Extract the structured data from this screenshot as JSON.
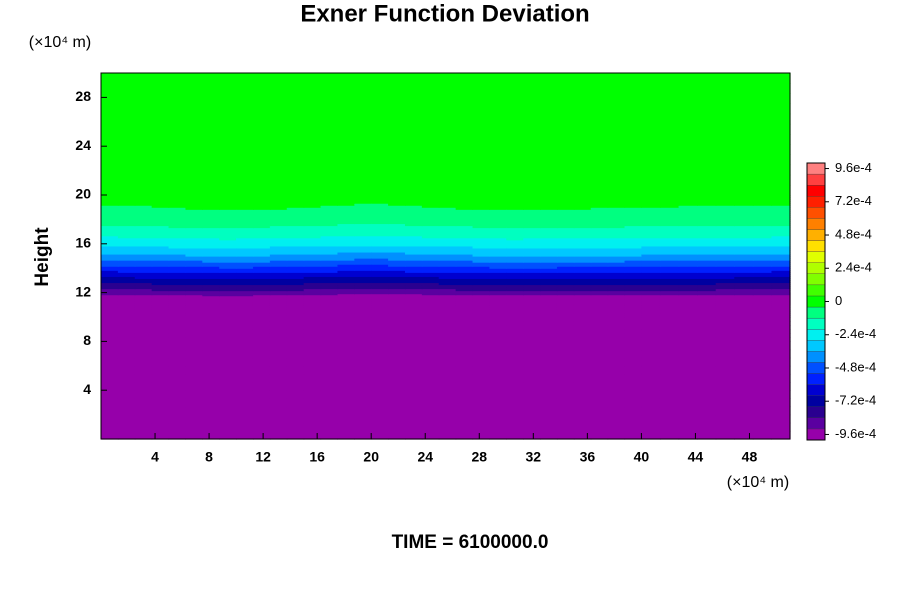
{
  "chart_data": {
    "type": "contour",
    "title": "Exner Function Deviation",
    "y_label": "Height",
    "x_unit_label": "(×10⁴ m)",
    "y_unit_label": "(×10⁴ m)",
    "time_label": "TIME = 6100000.0",
    "xlim": [
      0,
      51
    ],
    "ylim": [
      0,
      30
    ],
    "xticks": [
      4,
      8,
      12,
      16,
      20,
      24,
      28,
      32,
      36,
      40,
      44,
      48
    ],
    "yticks": [
      4,
      8,
      12,
      16,
      20,
      24,
      28
    ],
    "x": [
      0,
      10,
      20,
      30,
      40,
      51
    ],
    "y": [
      0,
      4,
      8,
      10,
      11,
      11.5,
      12,
      13,
      14,
      15,
      16,
      17,
      18,
      19,
      20,
      25,
      30
    ],
    "z": [
      [
        -0.0011,
        -0.0011,
        -0.0011,
        -0.0011,
        -0.0011,
        -0.0011
      ],
      [
        -0.0011,
        -0.0011,
        -0.0011,
        -0.0011,
        -0.0011,
        -0.0011
      ],
      [
        -0.0011,
        -0.0011,
        -0.0011,
        -0.0011,
        -0.0011,
        -0.0011
      ],
      [
        -0.0011,
        -0.0011,
        -0.0011,
        -0.0011,
        -0.0011,
        -0.0011
      ],
      [
        -0.00108,
        -0.00108,
        -0.00109,
        -0.00108,
        -0.00108,
        -0.00108
      ],
      [
        -0.00101,
        -0.00099,
        -0.00102,
        -0.00099,
        -0.001,
        -0.00101
      ],
      [
        -0.00089,
        -0.00086,
        -0.0009,
        -0.00087,
        -0.00087,
        -0.00089
      ],
      [
        -0.00073,
        -0.0007,
        -0.00074,
        -0.0007,
        -0.00071,
        -0.00073
      ],
      [
        -0.00056,
        -0.00053,
        -0.00057,
        -0.00053,
        -0.00054,
        -0.00056
      ],
      [
        -0.00039,
        -0.00036,
        -0.0004,
        -0.00036,
        -0.00037,
        -0.00039
      ],
      [
        -0.00026,
        -0.00024,
        -0.00027,
        -0.00024,
        -0.00025,
        -0.00026
      ],
      [
        -0.00016,
        -0.00014,
        -0.00017,
        -0.00014,
        -0.00015,
        -0.00016
      ],
      [
        -9e-05,
        -7e-05,
        -0.0001,
        -7e-05,
        -8e-05,
        -9e-05
      ],
      [
        -5e-05,
        -3e-05,
        -5e-05,
        -3e-05,
        -4e-05,
        -5e-05
      ],
      [
        -1e-05,
        1e-05,
        -2e-05,
        1e-05,
        -1e-05,
        -1e-05
      ],
      [
        2e-05,
        2e-05,
        2e-05,
        2e-05,
        2e-05,
        2e-05
      ],
      [
        2e-05,
        2e-05,
        2e-05,
        2e-05,
        2e-05,
        2e-05
      ]
    ],
    "colorbar_lim": [
      -0.001,
      0.001
    ],
    "colorbar_ticks": [
      {
        "value": -0.00096,
        "label": "-9.6e-4"
      },
      {
        "value": -0.00072,
        "label": "-7.2e-4"
      },
      {
        "value": -0.00048,
        "label": "-4.8e-4"
      },
      {
        "value": -0.00024,
        "label": "-2.4e-4"
      },
      0,
      {
        "value": 0.00024,
        "label": "2.4e-4"
      },
      {
        "value": 0.00048,
        "label": "4.8e-4"
      },
      {
        "value": 0.00072,
        "label": "7.2e-4"
      },
      {
        "value": 0.00096,
        "label": "9.6e-4"
      }
    ],
    "colors": [
      "#9600aa",
      "#5a00a0",
      "#2a0090",
      "#0000a0",
      "#0000d0",
      "#0020ff",
      "#0050ff",
      "#0090ff",
      "#00c8ff",
      "#00f0f0",
      "#00ffc0",
      "#00ff80",
      "#00ff00",
      "#40ff00",
      "#80ff00",
      "#b0ff00",
      "#e0ff00",
      "#ffe000",
      "#ffb000",
      "#ff8000",
      "#ff5000",
      "#ff2000",
      "#ff0000",
      "#ff4040",
      "#ff8080"
    ]
  }
}
